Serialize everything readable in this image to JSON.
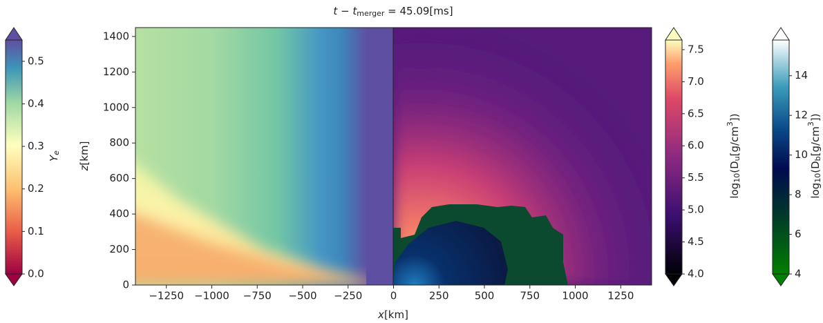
{
  "chart_data": {
    "type": "heatmap",
    "title": {
      "text": "t − t",
      "subscript": "merger",
      "rest": " = 45.09[ms]"
    },
    "xlabel": [
      "x",
      "[km]"
    ],
    "ylabel": [
      "z",
      "[km]"
    ],
    "xlim": [
      -1420,
      1420
    ],
    "ylim": [
      0,
      1450
    ],
    "xticks": [
      {
        "value": -1250,
        "label": "−1250"
      },
      {
        "value": -1000,
        "label": "−1000"
      },
      {
        "value": -750,
        "label": "−750"
      },
      {
        "value": -500,
        "label": "−500"
      },
      {
        "value": -250,
        "label": "−250"
      },
      0,
      250,
      500,
      750,
      1000,
      1250
    ],
    "yticks": [
      0,
      200,
      400,
      600,
      800,
      1000,
      1200,
      1400
    ],
    "colorbars": [
      {
        "label": [
          "Y",
          "e"
        ],
        "lim": [
          0,
          0.55
        ],
        "ticks": [
          {
            "value": 0,
            "label": "0.0"
          },
          0.1,
          0.2,
          0.3,
          0.4,
          0.5
        ]
      },
      {
        "label": [
          "log",
          "10",
          "(D",
          "u",
          "[g/cm",
          "3",
          "])"
        ],
        "lim": [
          4.0,
          7.65
        ],
        "ticks": [
          {
            "value": 4,
            "label": "4.0"
          },
          4.5,
          {
            "value": 5,
            "label": "5.0"
          },
          5.5,
          {
            "value": 6,
            "label": "6.0"
          },
          6.5,
          {
            "value": 7,
            "label": "7.0"
          },
          7.5
        ]
      },
      {
        "label": [
          "log",
          "10",
          "(D",
          "b",
          "[g/cm",
          "3",
          "])"
        ],
        "lim": [
          4,
          15.8
        ],
        "ticks": [
          4,
          6,
          8,
          10,
          12,
          14
        ]
      }
    ]
  }
}
